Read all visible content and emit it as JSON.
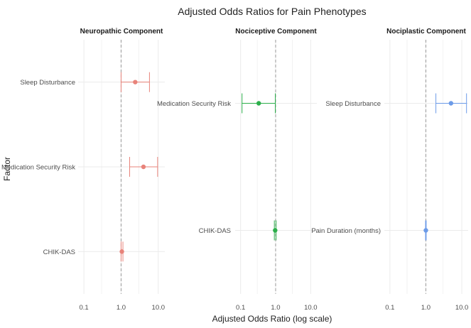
{
  "chart_data": {
    "type": "forest",
    "title": "Adjusted Odds Ratios for Pain Phenotypes",
    "xlabel": "Adjusted Odds Ratio (log scale)",
    "ylabel": "Factor",
    "x_scale": "log",
    "x_ticks": [
      "0.1",
      "1.0",
      "10.0"
    ],
    "reference_line": 1.0,
    "colors": {
      "Neuropathic Component": "#E8837A",
      "Nociceptive Component": "#2BAF4A",
      "Nociplastic Component": "#6C9BE8"
    },
    "panels": [
      {
        "name": "Neuropathic Component",
        "xlim": [
          0.07,
          15
        ],
        "items": [
          {
            "label": "Sleep Disturbance",
            "or": 2.4,
            "lower": 1.0,
            "upper": 5.8
          },
          {
            "label": "Medication Security Risk",
            "or": 4.0,
            "lower": 1.7,
            "upper": 9.6
          },
          {
            "label": "CHIK-DAS",
            "or": 1.05,
            "lower": 1.0,
            "upper": 1.12
          }
        ]
      },
      {
        "name": "Nociceptive Component",
        "xlim": [
          0.07,
          15
        ],
        "items": [
          {
            "label": "Medication Security Risk",
            "or": 0.33,
            "lower": 0.11,
            "upper": 0.98
          },
          {
            "label": "CHIK-DAS",
            "or": 0.97,
            "lower": 0.92,
            "upper": 1.03
          }
        ]
      },
      {
        "name": "Nociplastic Component",
        "xlim": [
          0.07,
          15
        ],
        "items": [
          {
            "label": "Sleep Disturbance",
            "or": 5.0,
            "lower": 1.9,
            "upper": 13.5
          },
          {
            "label": "Pain Duration (months)",
            "or": 1.0,
            "lower": 0.98,
            "upper": 1.02
          }
        ]
      }
    ]
  }
}
